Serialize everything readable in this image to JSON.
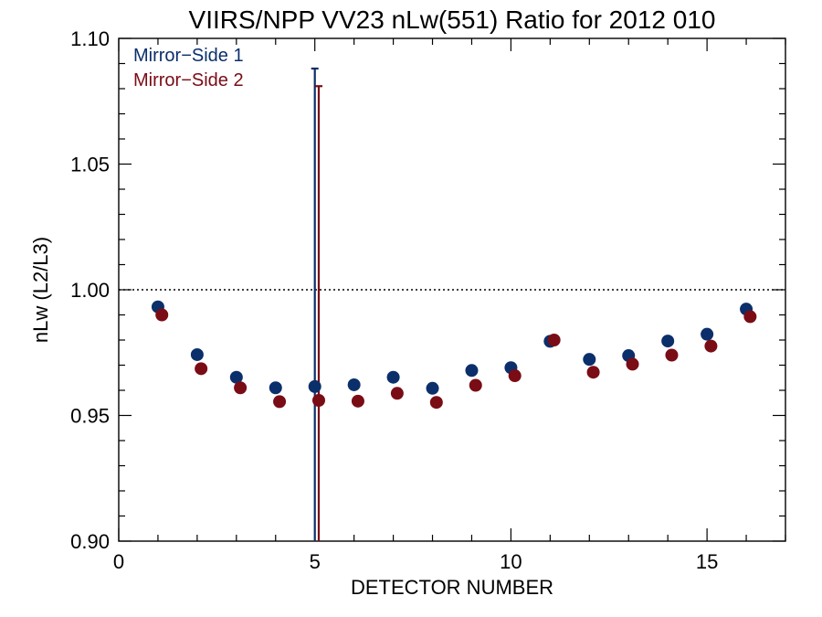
{
  "chart_data": {
    "type": "scatter",
    "title": "VIIRS/NPP VV23 nLw(551) Ratio for 2012 010",
    "xlabel": "DETECTOR NUMBER",
    "ylabel": "nLw (L2/L3)",
    "xlim": [
      0,
      17
    ],
    "ylim": [
      0.9,
      1.1
    ],
    "x_ticks": [
      0,
      5,
      10,
      15
    ],
    "x_tick_labels": [
      "0",
      "5",
      "10",
      "15"
    ],
    "y_ticks": [
      0.9,
      0.95,
      1.0,
      1.05,
      1.1
    ],
    "y_tick_labels": [
      "0.90",
      "0.95",
      "1.00",
      "1.05",
      "1.10"
    ],
    "reference_line": 1.0,
    "legend_position": "top-left",
    "series": [
      {
        "name": "Mirror−Side 1",
        "color": "#0b2f6b",
        "x": [
          1,
          2,
          3,
          4,
          5,
          6,
          7,
          8,
          9,
          10,
          11,
          12,
          13,
          14,
          15,
          16
        ],
        "y": [
          0.9932,
          0.9742,
          0.9652,
          0.961,
          0.9615,
          0.9622,
          0.9652,
          0.9608,
          0.9679,
          0.969,
          0.9795,
          0.9723,
          0.9738,
          0.9796,
          0.9823,
          0.9923
        ],
        "error_bar": {
          "x": 5,
          "y_low": 0.9,
          "y_high": 1.088
        }
      },
      {
        "name": "Mirror−Side 2",
        "color": "#7a0c16",
        "x_offset": 0.1,
        "x": [
          1,
          2,
          3,
          4,
          5,
          6,
          7,
          8,
          9,
          10,
          11,
          12,
          13,
          14,
          15,
          16
        ],
        "y": [
          0.99,
          0.9686,
          0.961,
          0.9555,
          0.956,
          0.9557,
          0.9588,
          0.9552,
          0.962,
          0.9658,
          0.98,
          0.9672,
          0.9704,
          0.974,
          0.9776,
          0.9893
        ],
        "error_bar": {
          "x": 5,
          "y_low": 0.9,
          "y_high": 1.081
        }
      }
    ]
  }
}
